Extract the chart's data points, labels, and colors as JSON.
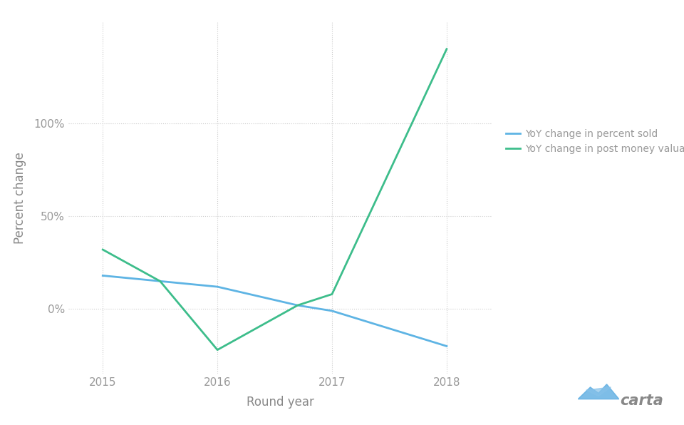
{
  "blue_x": [
    2015,
    2015.5,
    2016,
    2016.7,
    2017,
    2018
  ],
  "blue_y": [
    18,
    15,
    12,
    2,
    -1,
    -20
  ],
  "green_x": [
    2015,
    2015.5,
    2016,
    2016.7,
    2017,
    2018
  ],
  "green_y": [
    32,
    15,
    -22,
    2,
    8,
    140
  ],
  "blue_color": "#5EB4E4",
  "green_color": "#3DBD8B",
  "xlabel": "Round year",
  "ylabel": "Percent change",
  "xticks": [
    2015,
    2016,
    2017,
    2018
  ],
  "yticks": [
    0,
    50,
    100
  ],
  "ytick_labels": [
    "0%",
    "50%",
    "100%"
  ],
  "ylim": [
    -35,
    155
  ],
  "xlim": [
    2014.7,
    2018.4
  ],
  "legend_labels": [
    "YoY change in percent sold",
    "YoY change in post money valuation"
  ],
  "background_color": "#FFFFFF",
  "grid_color": "#CCCCCC",
  "text_color": "#999999",
  "axis_label_color": "#888888",
  "carta_color": "#888888"
}
